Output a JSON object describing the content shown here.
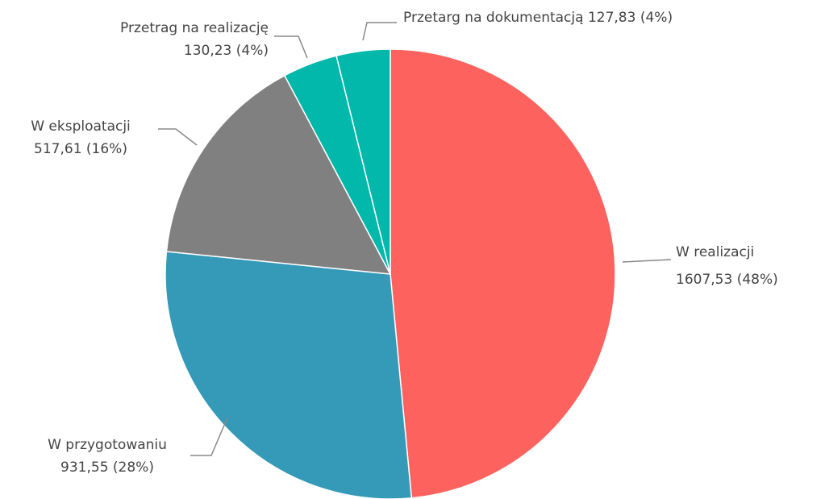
{
  "chart_data": {
    "type": "pie",
    "categories": [
      "W realizacji",
      "W przygotowaniu",
      "W eksploatacji",
      "Przetrag na realizację",
      "Przetarg na dokumentacją"
    ],
    "values": [
      1607.53,
      931.55,
      517.61,
      130.23,
      127.83
    ],
    "value_labels": [
      "1607,53 (48%)",
      "931,55 (28%)",
      "517,61 (16%)",
      "130,23 (4%)",
      "127,83 (4%)"
    ],
    "colors": [
      "#fd625e",
      "#3599b8",
      "#808080",
      "#01b8aa",
      "#01b8aa"
    ]
  }
}
